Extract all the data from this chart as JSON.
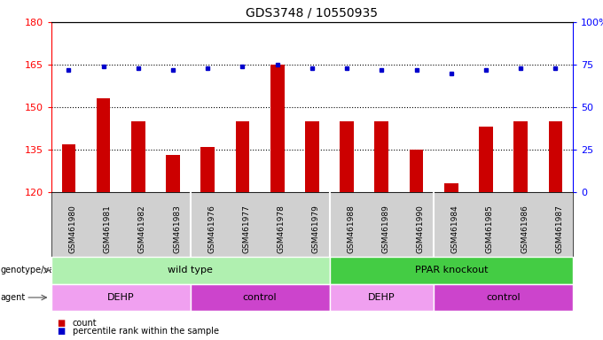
{
  "title": "GDS3748 / 10550935",
  "samples": [
    "GSM461980",
    "GSM461981",
    "GSM461982",
    "GSM461983",
    "GSM461976",
    "GSM461977",
    "GSM461978",
    "GSM461979",
    "GSM461988",
    "GSM461989",
    "GSM461990",
    "GSM461984",
    "GSM461985",
    "GSM461986",
    "GSM461987"
  ],
  "counts": [
    137,
    153,
    145,
    133,
    136,
    145,
    165,
    145,
    145,
    145,
    135,
    123,
    143,
    145,
    145
  ],
  "percentile_ranks": [
    72,
    74,
    73,
    72,
    73,
    74,
    75,
    73,
    73,
    72,
    72,
    70,
    72,
    73,
    73
  ],
  "ylim_left": [
    120,
    180
  ],
  "ylim_right": [
    0,
    100
  ],
  "yticks_left": [
    120,
    135,
    150,
    165,
    180
  ],
  "yticks_right": [
    0,
    25,
    50,
    75,
    100
  ],
  "bar_color": "#cc0000",
  "dot_color": "#0000cc",
  "plot_bg": "#ffffff",
  "tick_area_bg": "#d0d0d0",
  "genotype_groups": [
    {
      "label": "wild type",
      "start": 0,
      "end": 8,
      "color": "#b0f0b0"
    },
    {
      "label": "PPAR knockout",
      "start": 8,
      "end": 15,
      "color": "#44cc44"
    }
  ],
  "agent_groups": [
    {
      "label": "DEHP",
      "start": 0,
      "end": 4,
      "color": "#f0a0f0"
    },
    {
      "label": "control",
      "start": 4,
      "end": 8,
      "color": "#cc44cc"
    },
    {
      "label": "DEHP",
      "start": 8,
      "end": 11,
      "color": "#f0a0f0"
    },
    {
      "label": "control",
      "start": 11,
      "end": 15,
      "color": "#cc44cc"
    }
  ],
  "hgrid_values": [
    135,
    150,
    165
  ],
  "bar_width": 0.4,
  "title_fontsize": 10,
  "axis_fontsize": 8,
  "label_fontsize": 8,
  "tick_fontsize": 6.5
}
